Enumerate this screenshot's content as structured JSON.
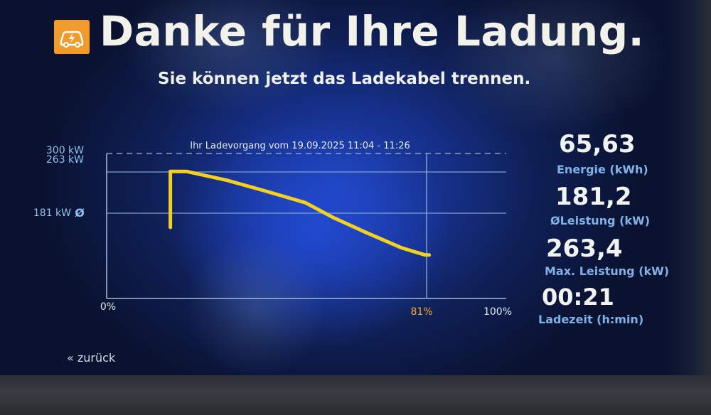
{
  "header": {
    "title": "Danke für Ihre Ladung.",
    "subtitle": "Sie können jetzt das Ladekabel trennen.",
    "logo_icon": "ev-charging-car-icon",
    "logo_color": "#f39a2c"
  },
  "chart": {
    "title": "Ihr Ladevorgang vom 19.09.2025 11:04 - 11:26",
    "y_ticks": [
      "300 kW",
      "263 kW",
      "181 kW"
    ],
    "avg_symbol": "Ø",
    "x_ticks": [
      "0%",
      "81%",
      "100%"
    ],
    "line_color": "#f4d020"
  },
  "chart_data": {
    "type": "line",
    "title": "Ihr Ladevorgang vom 19.09.2025 11:04 - 11:26",
    "xlabel": "",
    "ylabel": "",
    "xlim": [
      0,
      100
    ],
    "ylim": [
      0,
      300
    ],
    "reference_lines": [
      {
        "label": "300 kW",
        "value": 300,
        "style": "dashed"
      },
      {
        "label": "263 kW",
        "value": 263
      },
      {
        "label": "181 kW",
        "value": 181,
        "marker": "Ø"
      }
    ],
    "x_marker": {
      "label": "81%",
      "value": 81
    },
    "series": [
      {
        "x": [
          16,
          16,
          20,
          30,
          40,
          50,
          57,
          65,
          74,
          80,
          81
        ],
        "y": [
          147,
          263,
          263,
          245,
          222,
          198,
          167,
          137,
          105,
          90,
          90
        ]
      }
    ]
  },
  "stats": [
    {
      "value": "65,63",
      "label": "Energie (kWh)"
    },
    {
      "value": "181,2",
      "label": "ØLeistung (kW)"
    },
    {
      "value": "263,4",
      "label": "Max. Leistung (kW)"
    },
    {
      "value": "00:21",
      "label": "Ladezeit (h:min)"
    }
  ],
  "nav": {
    "back_label": "« zurück"
  }
}
